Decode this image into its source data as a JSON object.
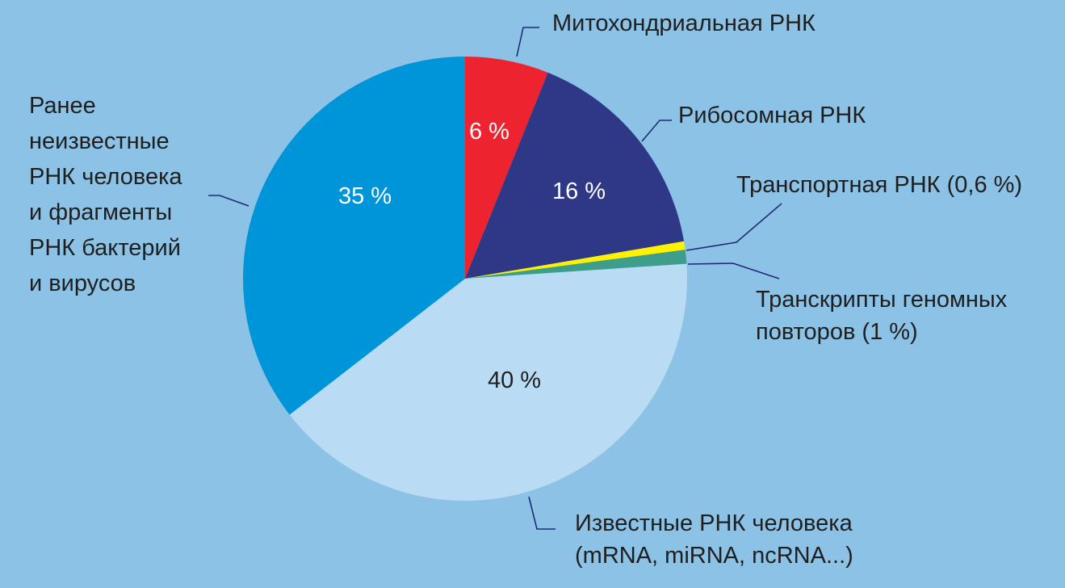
{
  "chart_data": {
    "type": "pie",
    "title": "",
    "background_color": "#8cc2e6",
    "slices": [
      {
        "id": "mito",
        "label_lines": [
          "Митохондриальная РНК"
        ],
        "value": 6,
        "value_label": "6 %",
        "color": "#ee2330",
        "value_label_color": "#ffffff"
      },
      {
        "id": "ribo",
        "label_lines": [
          "Рибосомная РНК"
        ],
        "value": 16,
        "value_label": "16 %",
        "color": "#2e3886",
        "value_label_color": "#ffffff"
      },
      {
        "id": "trna",
        "label_lines": [
          "Транспортная РНК (0,6 %)"
        ],
        "value": 0.6,
        "value_label": "",
        "color": "#fff200",
        "value_label_color": "#ffffff"
      },
      {
        "id": "repeats",
        "label_lines": [
          "Транскрипты геномных",
          "повторов (1 %)"
        ],
        "value": 1,
        "value_label": "",
        "color": "#3d9e8c",
        "value_label_color": "#ffffff"
      },
      {
        "id": "known",
        "label_lines": [
          "Известные РНК человека",
          "(mRNA, miRNA, ncRNA...)"
        ],
        "value": 40,
        "value_label": "40 %",
        "color": "#b9dbf3",
        "value_label_color": "#1f1f1f"
      },
      {
        "id": "unknown",
        "label_lines": [
          "Ранее",
          "неизвестные",
          "РНК человека",
          "и фрагменты",
          "РНК бактерий",
          "и вирусов"
        ],
        "value": 35,
        "value_label": "35 %",
        "color": "#0095d9",
        "value_label_color": "#ffffff"
      }
    ],
    "legend": "callouts"
  }
}
